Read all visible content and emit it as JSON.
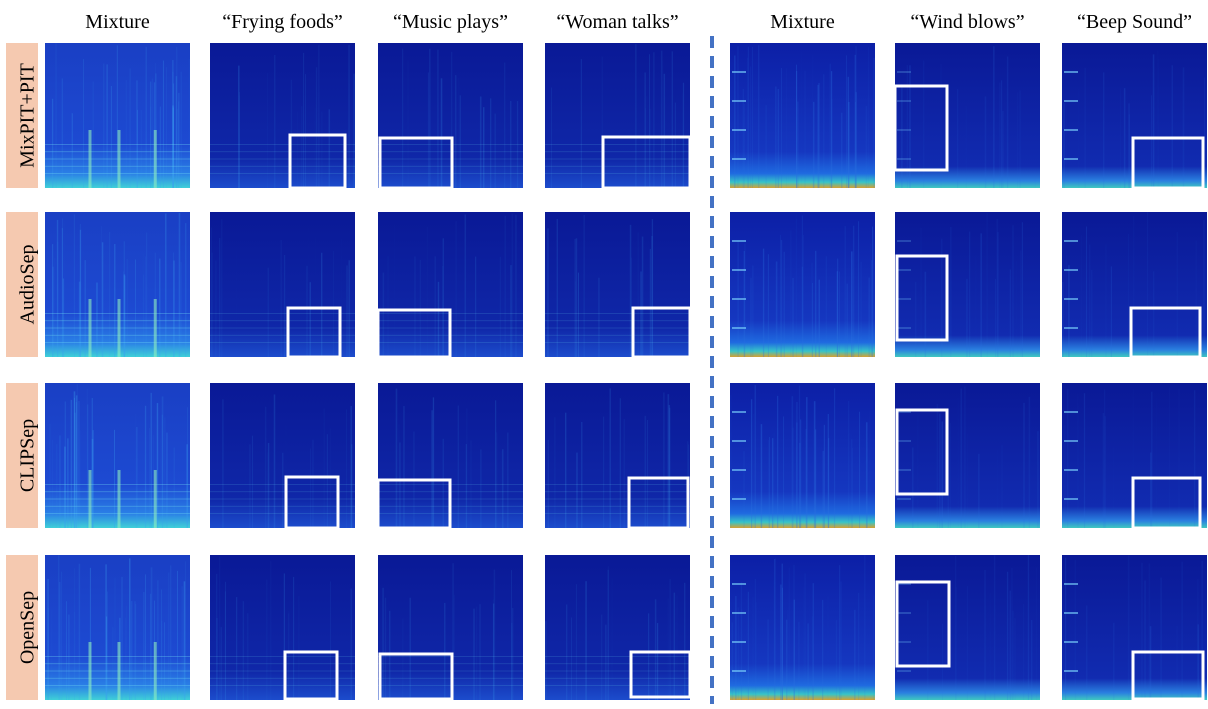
{
  "figure": {
    "columns": [
      "Mixture",
      "“Frying foods”",
      "“Music plays”",
      "“Woman talks”",
      "Mixture",
      "“Wind blows”",
      "“Beep Sound”"
    ],
    "rows": [
      "MixPIT+PIT",
      "AudioSep",
      "CLIPSep",
      "OpenSep"
    ]
  }
}
